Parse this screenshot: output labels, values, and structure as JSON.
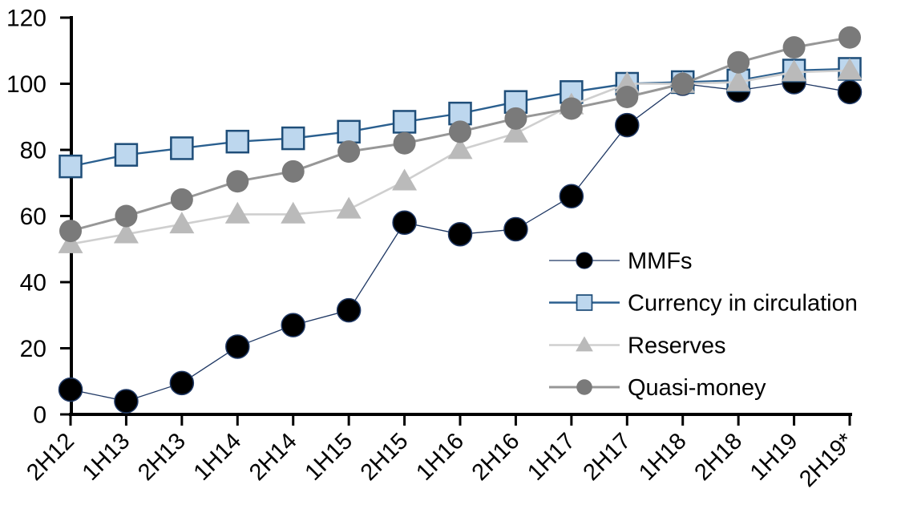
{
  "chart_data": {
    "type": "line",
    "title": "",
    "xlabel": "",
    "ylabel": "",
    "ylim": [
      0,
      120
    ],
    "y_ticks": [
      0,
      20,
      40,
      60,
      80,
      100,
      120
    ],
    "grid": false,
    "legend_position": "inside-right",
    "categories": [
      "2H12",
      "1H13",
      "2H13",
      "1H14",
      "2H14",
      "1H15",
      "2H15",
      "1H16",
      "2H16",
      "1H17",
      "2H17",
      "1H18",
      "2H18",
      "1H19",
      "2H19*"
    ],
    "series": [
      {
        "name": "MMFs",
        "marker": "circle",
        "marker_size": 29,
        "marker_fill": "#000000",
        "marker_edge": "#1f3864",
        "edge_width": 1.5,
        "line_color": "#1f3864",
        "line_width": 1.3,
        "values": [
          7.5,
          4,
          9.5,
          20.5,
          27,
          31.5,
          58,
          54.5,
          56,
          66,
          87.5,
          100,
          98,
          100.5,
          97.5
        ]
      },
      {
        "name": "Currency in circulation",
        "marker": "square",
        "marker_size": 27,
        "marker_fill": "#bdd7ee",
        "marker_edge": "#1f4e79",
        "edge_width": 2.5,
        "line_color": "#2a5f8f",
        "line_width": 2.4,
        "values": [
          75,
          78.5,
          80.5,
          82.5,
          83.5,
          85.5,
          88.5,
          91,
          94.5,
          97.5,
          100,
          100.5,
          101,
          104,
          104.5
        ]
      },
      {
        "name": "Reserves",
        "marker": "triangle",
        "marker_size": 31,
        "marker_fill": "#bababa",
        "marker_edge": "#bababa",
        "edge_width": 0,
        "line_color": "#cfcfcf",
        "line_width": 2.6,
        "values": [
          51.5,
          54.5,
          57.5,
          60.5,
          60.5,
          62,
          70.5,
          80,
          85,
          93.5,
          100,
          100,
          100.5,
          103.5,
          104
        ]
      },
      {
        "name": "Quasi-money",
        "marker": "circle",
        "marker_size": 28,
        "marker_fill": "#7a7a7a",
        "marker_edge": "#7a7a7a",
        "edge_width": 0,
        "line_color": "#979797",
        "line_width": 3,
        "values": [
          55.5,
          60,
          65,
          70.5,
          73.5,
          79.5,
          82,
          85.5,
          89.5,
          92.5,
          96,
          100,
          106.5,
          111,
          114
        ]
      }
    ],
    "axis_color": "#000000",
    "tick_label_color": "#000000"
  }
}
